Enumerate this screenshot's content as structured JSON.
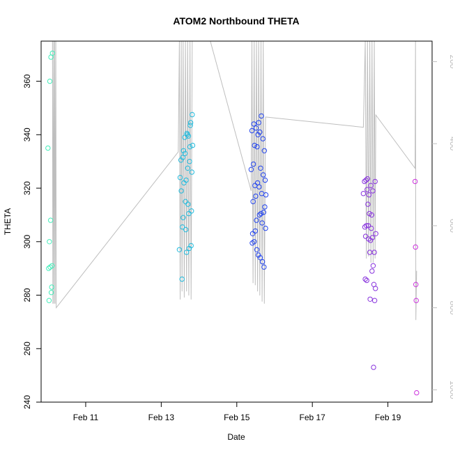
{
  "chart_data": {
    "type": "scatter",
    "title": "ATOM2 Northbound THETA",
    "xlabel": "Date",
    "ylabel": "THETA",
    "xlim": [
      9.82,
      20.17
    ],
    "ylim": [
      240,
      375
    ],
    "x_ticks": [
      {
        "value": 11,
        "label": "Feb 11"
      },
      {
        "value": 13,
        "label": "Feb 13"
      },
      {
        "value": 15,
        "label": "Feb 15"
      },
      {
        "value": 17,
        "label": "Feb 17"
      },
      {
        "value": 19,
        "label": "Feb 19"
      }
    ],
    "y_ticks": [
      240,
      260,
      280,
      300,
      320,
      340,
      360
    ],
    "right_axis": {
      "label_color": "#bebebe",
      "lim_top": 150,
      "lim_bottom": 1030,
      "ticks": [
        200,
        400,
        600,
        800,
        1000
      ]
    },
    "depth_trace_color": "#bebebe",
    "depth_trace": [
      {
        "t": 10.12,
        "d": 150
      },
      {
        "t": 10.13,
        "d": 790
      },
      {
        "t": 10.15,
        "d": 150
      },
      {
        "t": 10.16,
        "d": 790
      },
      {
        "t": 10.18,
        "d": 150
      },
      {
        "t": 10.19,
        "d": 790
      },
      {
        "t": 10.21,
        "d": 150
      },
      {
        "t": 10.22,
        "d": 800
      },
      {
        "t": 13.45,
        "d": 420
      },
      {
        "t": 13.48,
        "d": 150
      },
      {
        "t": 13.5,
        "d": 780
      },
      {
        "t": 13.53,
        "d": 150
      },
      {
        "t": 13.55,
        "d": 760
      },
      {
        "t": 13.58,
        "d": 150
      },
      {
        "t": 13.61,
        "d": 775
      },
      {
        "t": 13.64,
        "d": 150
      },
      {
        "t": 13.67,
        "d": 760
      },
      {
        "t": 13.7,
        "d": 150
      },
      {
        "t": 13.73,
        "d": 770
      },
      {
        "t": 13.76,
        "d": 150
      },
      {
        "t": 13.79,
        "d": 780
      },
      {
        "t": 13.82,
        "d": 150
      },
      {
        "t": 14.3,
        "d": 150
      },
      {
        "t": 15.38,
        "d": 515
      },
      {
        "t": 15.4,
        "d": 150
      },
      {
        "t": 15.43,
        "d": 740
      },
      {
        "t": 15.46,
        "d": 150
      },
      {
        "t": 15.49,
        "d": 745
      },
      {
        "t": 15.52,
        "d": 150
      },
      {
        "t": 15.55,
        "d": 760
      },
      {
        "t": 15.58,
        "d": 150
      },
      {
        "t": 15.61,
        "d": 770
      },
      {
        "t": 15.64,
        "d": 150
      },
      {
        "t": 15.67,
        "d": 785
      },
      {
        "t": 15.7,
        "d": 150
      },
      {
        "t": 15.73,
        "d": 790
      },
      {
        "t": 15.76,
        "d": 335
      },
      {
        "t": 18.35,
        "d": 360
      },
      {
        "t": 18.4,
        "d": 150
      },
      {
        "t": 18.43,
        "d": 680
      },
      {
        "t": 18.46,
        "d": 150
      },
      {
        "t": 18.49,
        "d": 675
      },
      {
        "t": 18.52,
        "d": 150
      },
      {
        "t": 18.55,
        "d": 690
      },
      {
        "t": 18.58,
        "d": 150
      },
      {
        "t": 18.61,
        "d": 690
      },
      {
        "t": 18.64,
        "d": 150
      },
      {
        "t": 18.66,
        "d": 680
      },
      {
        "t": 18.68,
        "d": 330
      },
      {
        "t": 19.72,
        "d": 460
      },
      {
        "t": 19.73,
        "d": 150
      },
      {
        "t": 19.74,
        "d": 830
      },
      {
        "t": 19.76,
        "d": 710
      }
    ],
    "points": [
      {
        "t": 10.0,
        "v": 335,
        "c": "#44eebb"
      },
      {
        "t": 10.02,
        "v": 290,
        "c": "#44eebb"
      },
      {
        "t": 10.03,
        "v": 278,
        "c": "#44eebb"
      },
      {
        "t": 10.04,
        "v": 300,
        "c": "#44eebb"
      },
      {
        "t": 10.05,
        "v": 360,
        "c": "#44eebb"
      },
      {
        "t": 10.06,
        "v": 290.5,
        "c": "#44eebb"
      },
      {
        "t": 10.07,
        "v": 308,
        "c": "#44eebb"
      },
      {
        "t": 10.08,
        "v": 369,
        "c": "#44eebb"
      },
      {
        "t": 10.09,
        "v": 281,
        "c": "#44eebb"
      },
      {
        "t": 10.1,
        "v": 283,
        "c": "#44eebb"
      },
      {
        "t": 10.11,
        "v": 291,
        "c": "#44eebb"
      },
      {
        "t": 10.12,
        "v": 370.5,
        "c": "#44eebb"
      },
      {
        "t": 13.48,
        "v": 297,
        "c": "#22bbdd"
      },
      {
        "t": 13.5,
        "v": 324,
        "c": "#22bbdd"
      },
      {
        "t": 13.52,
        "v": 330.5,
        "c": "#22bbdd"
      },
      {
        "t": 13.53,
        "v": 319,
        "c": "#22bbdd"
      },
      {
        "t": 13.55,
        "v": 286,
        "c": "#22bbdd"
      },
      {
        "t": 13.56,
        "v": 305.5,
        "c": "#22bbdd"
      },
      {
        "t": 13.57,
        "v": 331.5,
        "c": "#22bbdd"
      },
      {
        "t": 13.58,
        "v": 309,
        "c": "#22bbdd"
      },
      {
        "t": 13.59,
        "v": 334,
        "c": "#22bbdd"
      },
      {
        "t": 13.6,
        "v": 322,
        "c": "#22bbdd"
      },
      {
        "t": 13.62,
        "v": 339,
        "c": "#22bbdd"
      },
      {
        "t": 13.63,
        "v": 333,
        "c": "#22bbdd"
      },
      {
        "t": 13.64,
        "v": 315,
        "c": "#22bbdd"
      },
      {
        "t": 13.65,
        "v": 304.5,
        "c": "#22bbdd"
      },
      {
        "t": 13.66,
        "v": 323,
        "c": "#22bbdd"
      },
      {
        "t": 13.67,
        "v": 296,
        "c": "#22bbdd"
      },
      {
        "t": 13.68,
        "v": 340.5,
        "c": "#22bbdd"
      },
      {
        "t": 13.69,
        "v": 340,
        "c": "#22bbdd"
      },
      {
        "t": 13.7,
        "v": 327.5,
        "c": "#22bbdd"
      },
      {
        "t": 13.71,
        "v": 314,
        "c": "#22bbdd"
      },
      {
        "t": 13.72,
        "v": 339.5,
        "c": "#22bbdd"
      },
      {
        "t": 13.73,
        "v": 310.5,
        "c": "#22bbdd"
      },
      {
        "t": 13.74,
        "v": 297.5,
        "c": "#22bbdd"
      },
      {
        "t": 13.75,
        "v": 330,
        "c": "#22bbdd"
      },
      {
        "t": 13.76,
        "v": 335.5,
        "c": "#22bbdd"
      },
      {
        "t": 13.77,
        "v": 343.5,
        "c": "#22bbdd"
      },
      {
        "t": 13.78,
        "v": 344.5,
        "c": "#22bbdd"
      },
      {
        "t": 13.79,
        "v": 298.5,
        "c": "#22bbdd"
      },
      {
        "t": 13.8,
        "v": 311.5,
        "c": "#22bbdd"
      },
      {
        "t": 13.81,
        "v": 326,
        "c": "#22bbdd"
      },
      {
        "t": 13.82,
        "v": 347.5,
        "c": "#22bbdd"
      },
      {
        "t": 13.83,
        "v": 336,
        "c": "#22bbdd"
      },
      {
        "t": 15.38,
        "v": 327,
        "c": "#2244ee"
      },
      {
        "t": 15.4,
        "v": 341.5,
        "c": "#2244ee"
      },
      {
        "t": 15.41,
        "v": 299.5,
        "c": "#2244ee"
      },
      {
        "t": 15.42,
        "v": 303,
        "c": "#2244ee"
      },
      {
        "t": 15.43,
        "v": 315,
        "c": "#2244ee"
      },
      {
        "t": 15.44,
        "v": 329,
        "c": "#2244ee"
      },
      {
        "t": 15.45,
        "v": 344,
        "c": "#2244ee"
      },
      {
        "t": 15.46,
        "v": 300,
        "c": "#2244ee"
      },
      {
        "t": 15.47,
        "v": 336,
        "c": "#2244ee"
      },
      {
        "t": 15.48,
        "v": 321,
        "c": "#2244ee"
      },
      {
        "t": 15.49,
        "v": 304,
        "c": "#2244ee"
      },
      {
        "t": 15.5,
        "v": 317,
        "c": "#2244ee"
      },
      {
        "t": 15.51,
        "v": 342.5,
        "c": "#2244ee"
      },
      {
        "t": 15.52,
        "v": 308,
        "c": "#2244ee"
      },
      {
        "t": 15.53,
        "v": 297,
        "c": "#2244ee"
      },
      {
        "t": 15.54,
        "v": 335.5,
        "c": "#2244ee"
      },
      {
        "t": 15.55,
        "v": 322,
        "c": "#2244ee"
      },
      {
        "t": 15.56,
        "v": 340,
        "c": "#2244ee"
      },
      {
        "t": 15.57,
        "v": 295,
        "c": "#2244ee"
      },
      {
        "t": 15.58,
        "v": 344.5,
        "c": "#2244ee"
      },
      {
        "t": 15.59,
        "v": 320.5,
        "c": "#2244ee"
      },
      {
        "t": 15.6,
        "v": 310,
        "c": "#2244ee"
      },
      {
        "t": 15.61,
        "v": 341,
        "c": "#2244ee"
      },
      {
        "t": 15.62,
        "v": 294,
        "c": "#2244ee"
      },
      {
        "t": 15.63,
        "v": 327.5,
        "c": "#2244ee"
      },
      {
        "t": 15.64,
        "v": 310.5,
        "c": "#2244ee"
      },
      {
        "t": 15.65,
        "v": 347,
        "c": "#2244ee"
      },
      {
        "t": 15.66,
        "v": 318,
        "c": "#2244ee"
      },
      {
        "t": 15.67,
        "v": 307,
        "c": "#2244ee"
      },
      {
        "t": 15.68,
        "v": 292.5,
        "c": "#2244ee"
      },
      {
        "t": 15.69,
        "v": 338.5,
        "c": "#2244ee"
      },
      {
        "t": 15.7,
        "v": 325,
        "c": "#2244ee"
      },
      {
        "t": 15.71,
        "v": 311,
        "c": "#2244ee"
      },
      {
        "t": 15.72,
        "v": 290.5,
        "c": "#2244ee"
      },
      {
        "t": 15.73,
        "v": 334,
        "c": "#2244ee"
      },
      {
        "t": 15.74,
        "v": 313,
        "c": "#2244ee"
      },
      {
        "t": 15.75,
        "v": 323,
        "c": "#2244ee"
      },
      {
        "t": 15.76,
        "v": 305,
        "c": "#2244ee"
      },
      {
        "t": 15.77,
        "v": 317.5,
        "c": "#2244ee"
      },
      {
        "t": 18.35,
        "v": 318,
        "c": "#8833dd"
      },
      {
        "t": 18.38,
        "v": 322.5,
        "c": "#8833dd"
      },
      {
        "t": 18.39,
        "v": 305.5,
        "c": "#8833dd"
      },
      {
        "t": 18.4,
        "v": 286,
        "c": "#8833dd"
      },
      {
        "t": 18.41,
        "v": 302,
        "c": "#8833dd"
      },
      {
        "t": 18.42,
        "v": 323,
        "c": "#8833dd"
      },
      {
        "t": 18.43,
        "v": 306,
        "c": "#8833dd"
      },
      {
        "t": 18.44,
        "v": 285.5,
        "c": "#8833dd"
      },
      {
        "t": 18.45,
        "v": 319.5,
        "c": "#8833dd"
      },
      {
        "t": 18.46,
        "v": 323.5,
        "c": "#8833dd"
      },
      {
        "t": 18.47,
        "v": 314,
        "c": "#8833dd"
      },
      {
        "t": 18.48,
        "v": 306,
        "c": "#8833dd"
      },
      {
        "t": 18.49,
        "v": 301,
        "c": "#8833dd"
      },
      {
        "t": 18.5,
        "v": 317.5,
        "c": "#8833dd"
      },
      {
        "t": 18.51,
        "v": 310.5,
        "c": "#8833dd"
      },
      {
        "t": 18.52,
        "v": 296,
        "c": "#8833dd"
      },
      {
        "t": 18.53,
        "v": 278.5,
        "c": "#8833dd"
      },
      {
        "t": 18.54,
        "v": 300.5,
        "c": "#8833dd"
      },
      {
        "t": 18.55,
        "v": 321,
        "c": "#8833dd"
      },
      {
        "t": 18.56,
        "v": 305,
        "c": "#8833dd"
      },
      {
        "t": 18.57,
        "v": 310,
        "c": "#8833dd"
      },
      {
        "t": 18.58,
        "v": 289,
        "c": "#8833dd"
      },
      {
        "t": 18.59,
        "v": 301.5,
        "c": "#8833dd"
      },
      {
        "t": 18.6,
        "v": 319,
        "c": "#8833dd"
      },
      {
        "t": 18.61,
        "v": 291,
        "c": "#8833dd"
      },
      {
        "t": 18.62,
        "v": 253,
        "c": "#8833dd"
      },
      {
        "t": 18.63,
        "v": 284,
        "c": "#8833dd"
      },
      {
        "t": 18.64,
        "v": 296,
        "c": "#8833dd"
      },
      {
        "t": 18.65,
        "v": 278,
        "c": "#8833dd"
      },
      {
        "t": 18.66,
        "v": 322.5,
        "c": "#8833dd"
      },
      {
        "t": 18.67,
        "v": 282.5,
        "c": "#8833dd"
      },
      {
        "t": 18.68,
        "v": 303,
        "c": "#8833dd"
      },
      {
        "t": 19.72,
        "v": 322.5,
        "c": "#cc33dd"
      },
      {
        "t": 19.73,
        "v": 298,
        "c": "#cc33dd"
      },
      {
        "t": 19.74,
        "v": 284,
        "c": "#cc33dd"
      },
      {
        "t": 19.75,
        "v": 278,
        "c": "#cc33dd"
      },
      {
        "t": 19.76,
        "v": 243.5,
        "c": "#cc33dd"
      }
    ]
  }
}
